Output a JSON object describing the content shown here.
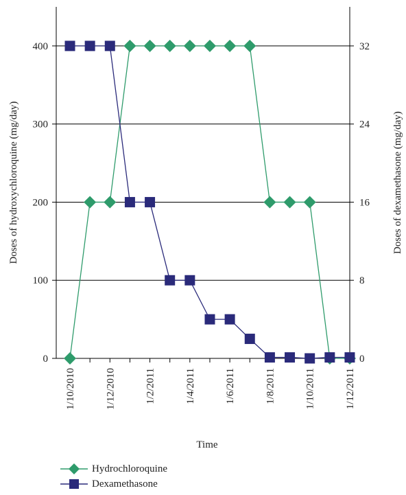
{
  "chart_data": {
    "type": "line",
    "title": "",
    "xlabel": "Time",
    "ylabel_left": "Doses of hydroxychloroquine (mg/day)",
    "ylabel_right": "Doses of dexamethasone (mg/day)",
    "x_tick_labels": [
      "1/10/2010",
      "1/12/2010",
      "1/2/2011",
      "1/4/2011",
      "1/6/2011",
      "1/8/2011",
      "1/10/2011",
      "1/12/2011"
    ],
    "x_ticks_months": [
      0,
      2,
      4,
      6,
      8,
      10,
      12,
      14
    ],
    "y_left_ticks": [
      0,
      100,
      200,
      300,
      400
    ],
    "y_left_lim": [
      0,
      450
    ],
    "y_right_ticks": [
      0,
      8,
      16,
      24,
      32
    ],
    "y_right_lim": [
      0,
      36
    ],
    "x_lim_months": [
      0,
      15.5
    ],
    "grid": "horizontal",
    "legend_position": "bottom-left",
    "series": [
      {
        "name": "Hydrochloroquine",
        "axis": "left",
        "color": "#2e9b6b",
        "marker": "diamond",
        "x_months": [
          0,
          1,
          2,
          3,
          4,
          5,
          6,
          7,
          8,
          9,
          10,
          11,
          12,
          13,
          14
        ],
        "values": [
          0,
          200,
          200,
          400,
          400,
          400,
          400,
          400,
          400,
          400,
          200,
          200,
          200,
          0,
          0
        ]
      },
      {
        "name": "Dexamethasone",
        "axis": "right",
        "color": "#2a2a7a",
        "marker": "square",
        "x_months": [
          0,
          1,
          2,
          3,
          4,
          5,
          6,
          7,
          8,
          9,
          10,
          11,
          12,
          13,
          14
        ],
        "values": [
          32,
          32,
          32,
          16,
          16,
          8,
          8,
          4,
          4,
          2,
          0.1,
          0.1,
          0,
          0.1,
          0.1
        ]
      }
    ]
  }
}
